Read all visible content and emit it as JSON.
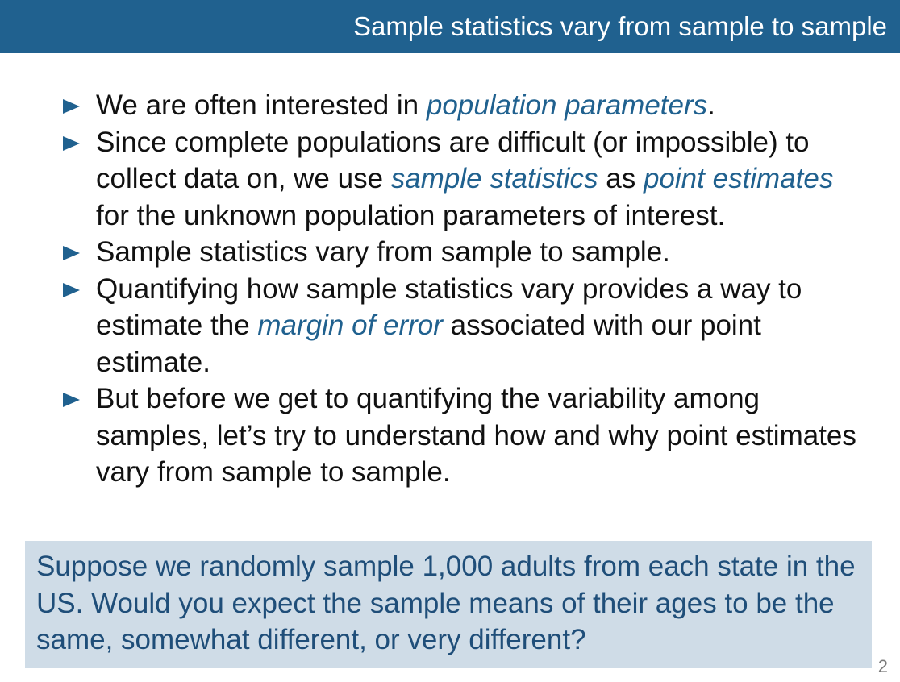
{
  "slide": {
    "title": "Sample statistics vary from sample to sample",
    "bullets": [
      {
        "parts": [
          {
            "text": "We are often interested in ",
            "emph": false
          },
          {
            "text": "population parameters",
            "emph": true
          },
          {
            "text": ".",
            "emph": false
          }
        ]
      },
      {
        "parts": [
          {
            "text": "Since complete populations are difficult (or impossible) to collect data on, we use ",
            "emph": false
          },
          {
            "text": "sample statistics",
            "emph": true
          },
          {
            "text": " as ",
            "emph": false
          },
          {
            "text": "point estimates",
            "emph": true
          },
          {
            "text": " for the unknown population parameters of interest.",
            "emph": false
          }
        ]
      },
      {
        "parts": [
          {
            "text": "Sample statistics vary from sample to sample.",
            "emph": false
          }
        ]
      },
      {
        "parts": [
          {
            "text": "Quantifying how sample statistics vary provides a way to estimate the ",
            "emph": false
          },
          {
            "text": "margin of error",
            "emph": true
          },
          {
            "text": " associated with our point estimate.",
            "emph": false
          }
        ]
      },
      {
        "parts": [
          {
            "text": "But before we get to quantifying the variability among samples, let’s try to understand how and why point estimates vary from sample to sample.",
            "emph": false
          }
        ]
      }
    ],
    "question": "Suppose we randomly sample 1,000 adults from each state in the US. Would you expect the sample means of their ages to be the same, somewhat different, or very different?",
    "page_number": "2"
  },
  "colors": {
    "title_bar": "#20618f",
    "title_text": "#ffffff",
    "bullet_arrow": "#20618f",
    "emphasis_text": "#20618f",
    "body_text": "#111111",
    "question_box": "#cfdce7",
    "question_text": "#1f4e79",
    "page_number": "#7a7a7a"
  }
}
